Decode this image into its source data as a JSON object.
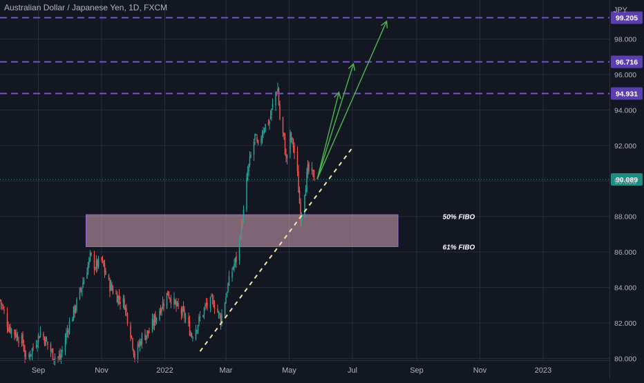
{
  "chart_data": {
    "type": "candlestick",
    "title": "Australian Dollar / Japanese Yen, 1D, FXCM",
    "currency_label": "JPY",
    "ylim": [
      79.9,
      100.2
    ],
    "y_ticks": [
      "80.000",
      "82.000",
      "84.000",
      "86.000",
      "88.000",
      "90.000",
      "92.000",
      "94.000",
      "96.000",
      "98.000"
    ],
    "x_ticks": [
      {
        "label": "Sep",
        "date": "2021-09-01"
      },
      {
        "label": "Nov",
        "date": "2021-11-01"
      },
      {
        "label": "2022",
        "date": "2022-01-01"
      },
      {
        "label": "Mar",
        "date": "2022-03-01"
      },
      {
        "label": "May",
        "date": "2022-05-01"
      },
      {
        "label": "Jul",
        "date": "2022-07-01"
      },
      {
        "label": "Sep",
        "date": "2022-09-01"
      },
      {
        "label": "Nov",
        "date": "2022-11-01"
      },
      {
        "label": "2023",
        "date": "2023-01-01"
      }
    ],
    "xlim": [
      "2021-07-26",
      "2023-03-06"
    ],
    "colors": {
      "up": "#26a69a",
      "down": "#ef5350",
      "background": "#131722",
      "grid": "#2a2e39",
      "level_line": "#7b4fd6",
      "zone_fill": "#d8a6b8",
      "trendline": "#f5e9a8",
      "arrow": "#4caf50",
      "text": "#b2b5be"
    },
    "price_path": [
      {
        "date": "2021-07-26",
        "close": 83.3
      },
      {
        "date": "2021-08-03",
        "close": 81.8
      },
      {
        "date": "2021-08-10",
        "close": 81.4
      },
      {
        "date": "2021-08-17",
        "close": 80.9
      },
      {
        "date": "2021-08-20",
        "close": 79.9
      },
      {
        "date": "2021-08-27",
        "close": 80.6
      },
      {
        "date": "2021-09-03",
        "close": 81.5
      },
      {
        "date": "2021-09-08",
        "close": 81.0
      },
      {
        "date": "2021-09-15",
        "close": 80.2
      },
      {
        "date": "2021-09-22",
        "close": 80.0
      },
      {
        "date": "2021-09-30",
        "close": 81.8
      },
      {
        "date": "2021-10-08",
        "close": 83.1
      },
      {
        "date": "2021-10-15",
        "close": 84.5
      },
      {
        "date": "2021-10-21",
        "close": 85.7
      },
      {
        "date": "2021-10-26",
        "close": 85.2
      },
      {
        "date": "2021-11-01",
        "close": 85.5
      },
      {
        "date": "2021-11-08",
        "close": 84.2
      },
      {
        "date": "2021-11-16",
        "close": 83.5
      },
      {
        "date": "2021-11-23",
        "close": 83.1
      },
      {
        "date": "2021-11-30",
        "close": 81.2
      },
      {
        "date": "2021-12-03",
        "close": 80.1
      },
      {
        "date": "2021-12-10",
        "close": 81.2
      },
      {
        "date": "2021-12-17",
        "close": 81.5
      },
      {
        "date": "2021-12-24",
        "close": 82.4
      },
      {
        "date": "2022-01-04",
        "close": 83.7
      },
      {
        "date": "2022-01-12",
        "close": 82.9
      },
      {
        "date": "2022-01-20",
        "close": 82.4
      },
      {
        "date": "2022-01-27",
        "close": 81.3
      },
      {
        "date": "2022-02-02",
        "close": 82.0
      },
      {
        "date": "2022-02-10",
        "close": 83.0
      },
      {
        "date": "2022-02-17",
        "close": 83.2
      },
      {
        "date": "2022-02-24",
        "close": 82.2
      },
      {
        "date": "2022-03-03",
        "close": 84.1
      },
      {
        "date": "2022-03-08",
        "close": 85.2
      },
      {
        "date": "2022-03-11",
        "close": 85.6
      },
      {
        "date": "2022-03-15",
        "close": 87.1
      },
      {
        "date": "2022-03-18",
        "close": 88.2
      },
      {
        "date": "2022-03-22",
        "close": 90.5
      },
      {
        "date": "2022-03-25",
        "close": 91.4
      },
      {
        "date": "2022-03-29",
        "close": 92.5
      },
      {
        "date": "2022-04-01",
        "close": 91.8
      },
      {
        "date": "2022-04-06",
        "close": 93.0
      },
      {
        "date": "2022-04-12",
        "close": 93.4
      },
      {
        "date": "2022-04-18",
        "close": 95.0
      },
      {
        "date": "2022-04-20",
        "close": 95.2
      },
      {
        "date": "2022-04-22",
        "close": 93.5
      },
      {
        "date": "2022-04-26",
        "close": 92.3
      },
      {
        "date": "2022-04-28",
        "close": 91.2
      },
      {
        "date": "2022-05-02",
        "close": 92.5
      },
      {
        "date": "2022-05-05",
        "close": 92.0
      },
      {
        "date": "2022-05-09",
        "close": 90.3
      },
      {
        "date": "2022-05-12",
        "close": 88.0
      },
      {
        "date": "2022-05-16",
        "close": 89.5
      },
      {
        "date": "2022-05-19",
        "close": 90.6
      },
      {
        "date": "2022-05-23",
        "close": 90.4
      },
      {
        "date": "2022-05-26",
        "close": 90.1
      }
    ],
    "horizontal_levels": [
      {
        "value": 99.205,
        "label": "99.205"
      },
      {
        "value": 96.716,
        "label": "96.716"
      },
      {
        "value": 94.931,
        "label": "94.931"
      }
    ],
    "current_price": {
      "value": 90.089,
      "label": "90.089"
    },
    "zone": {
      "x_start": "2021-10-17",
      "x_end": "2022-08-14",
      "y_low": 86.3,
      "y_high": 88.1,
      "labels": [
        {
          "text": "50% FIBO",
          "y": 88.0
        },
        {
          "text": "61% FIBO",
          "y": 86.3
        }
      ]
    },
    "trendline": {
      "start": {
        "date": "2022-02-04",
        "value": 80.4
      },
      "end": {
        "date": "2022-06-30",
        "value": 91.8
      }
    },
    "arrows": [
      {
        "start": {
          "date": "2022-05-28",
          "value": 90.1
        },
        "end": {
          "date": "2022-06-18",
          "value": 95.0
        }
      },
      {
        "start": {
          "date": "2022-05-28",
          "value": 90.1
        },
        "end": {
          "date": "2022-07-02",
          "value": 96.6
        }
      },
      {
        "start": {
          "date": "2022-05-28",
          "value": 90.1
        },
        "end": {
          "date": "2022-08-03",
          "value": 99.0
        }
      }
    ]
  }
}
